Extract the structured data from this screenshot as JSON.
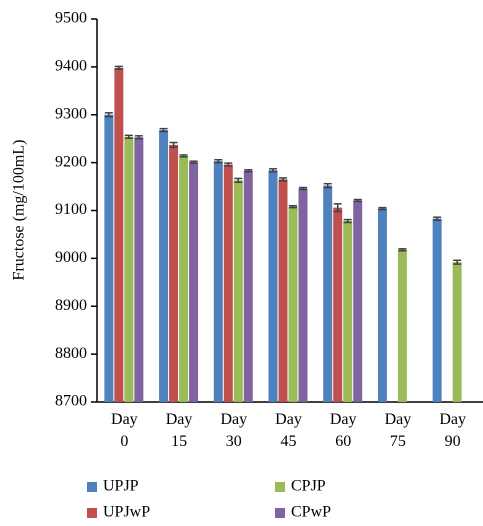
{
  "chart_data": {
    "type": "bar",
    "y_label": "Fructose (mg/100mL)",
    "categories": [
      "Day 0",
      "Day 15",
      "Day 30",
      "Day 45",
      "Day 60",
      "Day 75",
      "Day 90"
    ],
    "series": [
      {
        "name": "UPJP",
        "color": "#4f81bd",
        "values": [
          9300,
          9268,
          9203,
          9184,
          9152,
          9104,
          9083
        ],
        "errors": [
          4,
          3,
          3,
          3,
          4,
          2,
          3
        ]
      },
      {
        "name": "UPJwP",
        "color": "#c0504d",
        "values": [
          9398,
          9237,
          9196,
          9165,
          9106,
          null,
          null
        ],
        "errors": [
          3,
          5,
          3,
          3,
          8,
          null,
          null
        ]
      },
      {
        "name": "CPJP",
        "color": "#9bbb59",
        "values": [
          9254,
          9214,
          9163,
          9108,
          9078,
          9018,
          8992
        ],
        "errors": [
          3,
          2,
          4,
          2,
          3,
          2,
          4
        ]
      },
      {
        "name": "CPwP",
        "color": "#8064a2",
        "values": [
          9253,
          9201,
          9183,
          9146,
          9121,
          null,
          null
        ],
        "errors": [
          3,
          2,
          2,
          2,
          2,
          null,
          null
        ]
      }
    ],
    "ylim": [
      8700,
      9500
    ],
    "yticks": [
      8700,
      8800,
      8900,
      9000,
      9100,
      9200,
      9300,
      9400,
      9500
    ],
    "grid": false,
    "error_bar_color": "#404040"
  }
}
